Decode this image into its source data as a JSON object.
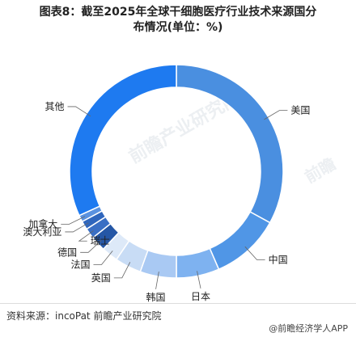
{
  "title": {
    "line1": "图表8：截至2025年全球干细胞医疗行业技术来源国分",
    "line2": "布情况(单位：%)"
  },
  "chart_data": {
    "type": "pie",
    "donut": true,
    "labels": [
      "美国",
      "中国",
      "日本",
      "韩国",
      "英国",
      "法国",
      "德国",
      "瑞士",
      "澳大利亚",
      "加拿大",
      "其他"
    ],
    "values": [
      33.0,
      10.5,
      6.5,
      5.5,
      4.0,
      2.5,
      2.3,
      1.6,
      1.3,
      1.0,
      31.8
    ],
    "colors": [
      "#4a8fe0",
      "#5096e6",
      "#7eb2f0",
      "#a9c9f3",
      "#c8dcf5",
      "#dde9f8",
      "#2557a6",
      "#3a6fc4",
      "#2f66bd",
      "#5a92e0",
      "#1e7af0"
    ],
    "label_pos": [
      "right",
      "right",
      "below",
      "below",
      "left",
      "left",
      "left",
      "right",
      "left",
      "left",
      "left"
    ]
  },
  "footer": {
    "source": "资料来源：incoPat 前瞻产业研究院",
    "brand": "@前瞻经济学人APP"
  },
  "watermark": {
    "text1": "前瞻产业研究院",
    "text2": "前瞻"
  }
}
